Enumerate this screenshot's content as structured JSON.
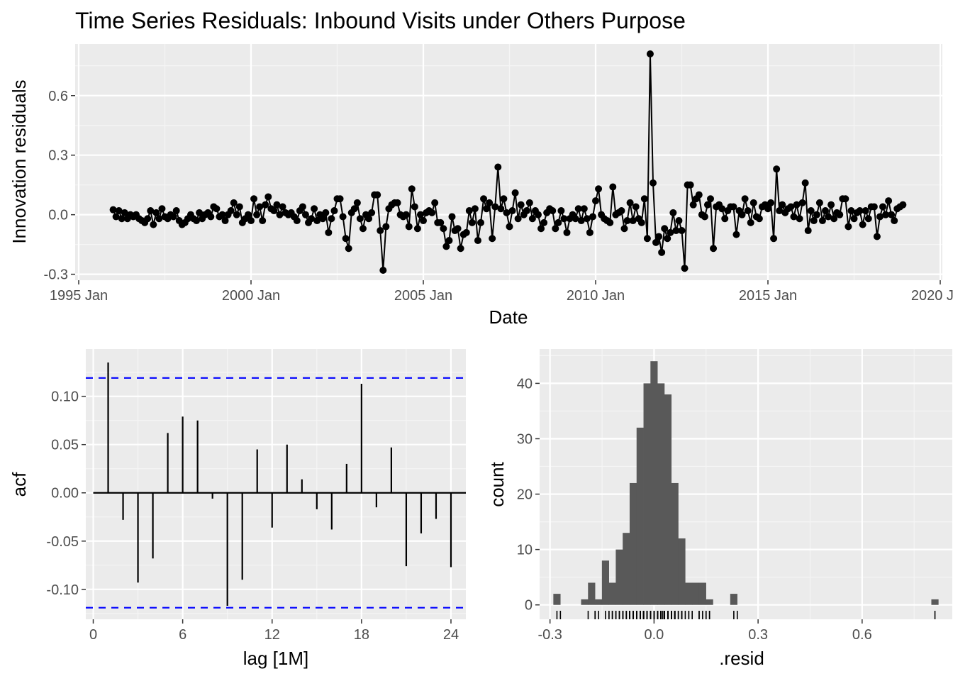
{
  "chart_data": [
    {
      "type": "line",
      "title": "Time Series Residuals: Inbound Visits under Others Purpose",
      "xlabel": "Date",
      "ylabel": "Innovation residuals",
      "x_start": "1996-01",
      "frequency": "monthly",
      "x_ticks": [
        "1995 Jan",
        "2000 Jan",
        "2005 Jan",
        "2010 Jan",
        "2015 Jan",
        "2020 Jan"
      ],
      "y_ticks": [
        "-0.3",
        "0.0",
        "0.3",
        "0.6"
      ],
      "ylim": [
        -0.33,
        0.86
      ],
      "grid": true,
      "series": [
        {
          "values": [
            0.025,
            -0.01,
            0.02,
            -0.02,
            0.01,
            -0.02,
            0.0,
            -0.01,
            0.0,
            -0.02,
            -0.03,
            -0.04,
            -0.02,
            0.02,
            -0.05,
            0.01,
            -0.02,
            0.03,
            -0.01,
            -0.02,
            0.0,
            -0.01,
            0.02,
            -0.03,
            -0.05,
            -0.04,
            -0.02,
            0.0,
            -0.02,
            -0.03,
            0.01,
            -0.02,
            0.0,
            0.01,
            -0.01,
            0.04,
            0.03,
            -0.01,
            0.0,
            -0.03,
            0.0,
            0.02,
            0.06,
            0.0,
            0.04,
            -0.04,
            -0.02,
            0.0,
            -0.03,
            0.08,
            0.0,
            0.04,
            -0.03,
            0.05,
            0.09,
            0.03,
            0.02,
            0.05,
            0.0,
            0.04,
            0.01,
            0.0,
            0.01,
            -0.01,
            -0.03,
            0.02,
            0.04,
            0.0,
            -0.04,
            -0.02,
            0.03,
            -0.03,
            0.0,
            -0.02,
            0.01,
            -0.09,
            -0.02,
            0.02,
            0.08,
            0.08,
            -0.01,
            -0.12,
            -0.17,
            0.01,
            0.03,
            0.06,
            -0.02,
            -0.07,
            0.0,
            -0.02,
            0.01,
            0.1,
            0.1,
            -0.08,
            -0.28,
            -0.06,
            0.03,
            0.05,
            0.06,
            0.06,
            0.0,
            -0.01,
            0.0,
            -0.06,
            0.13,
            0.04,
            -0.07,
            0.0,
            -0.03,
            0.01,
            0.02,
            0.01,
            0.06,
            -0.04,
            -0.04,
            -0.07,
            -0.16,
            -0.13,
            -0.01,
            -0.08,
            -0.07,
            -0.17,
            -0.1,
            -0.09,
            0.02,
            -0.04,
            0.03,
            -0.13,
            -0.04,
            0.08,
            0.03,
            0.06,
            -0.12,
            0.04,
            0.24,
            0.03,
            0.08,
            0.01,
            -0.06,
            0.02,
            0.11,
            -0.02,
            0.05,
            0.0,
            0.02,
            0.06,
            -0.02,
            0.02,
            0.0,
            -0.07,
            -0.04,
            0.01,
            0.03,
            0.02,
            -0.07,
            -0.04,
            0.02,
            -0.02,
            -0.09,
            -0.02,
            0.0,
            -0.02,
            0.03,
            -0.03,
            0.03,
            -0.02,
            -0.09,
            -0.01,
            0.07,
            0.13,
            0.0,
            -0.02,
            -0.03,
            -0.04,
            0.14,
            0.0,
            0.01,
            0.02,
            -0.07,
            -0.03,
            0.06,
            -0.03,
            0.04,
            -0.02,
            -0.04,
            0.08,
            -0.12,
            0.81,
            0.16,
            -0.14,
            -0.11,
            -0.19,
            -0.07,
            -0.12,
            -0.09,
            0.01,
            -0.08,
            -0.03,
            -0.08,
            -0.27,
            0.15,
            0.15,
            0.05,
            0.08,
            0.1,
            0.0,
            -0.01,
            0.05,
            0.08,
            -0.17,
            0.04,
            0.05,
            0.03,
            -0.02,
            0.02,
            0.04,
            0.04,
            -0.1,
            0.02,
            0.0,
            0.08,
            0.02,
            -0.04,
            0.06,
            -0.01,
            -0.02,
            0.04,
            0.05,
            0.03,
            0.06,
            -0.12,
            0.23,
            0.02,
            0.05,
            0.01,
            0.03,
            0.04,
            -0.01,
            0.05,
            -0.02,
            0.06,
            0.16,
            -0.08,
            0.02,
            -0.03,
            0.0,
            0.06,
            -0.03,
            0.02,
            -0.01,
            0.05,
            -0.02,
            0.01,
            0.0,
            0.08,
            0.08,
            -0.06,
            0.02,
            -0.02,
            0.01,
            0.02,
            -0.05,
            0.02,
            -0.02,
            0.04,
            0.04,
            -0.11,
            -0.01,
            0.04,
            0.0,
            0.07,
            0.0,
            -0.03,
            0.03,
            0.04,
            0.05
          ]
        }
      ]
    },
    {
      "type": "bar",
      "xlabel": "lag [1M]",
      "ylabel": "acf",
      "x": [
        1,
        2,
        3,
        4,
        5,
        6,
        7,
        8,
        9,
        10,
        11,
        12,
        13,
        14,
        15,
        16,
        17,
        18,
        19,
        20,
        21,
        22,
        23,
        24
      ],
      "values": [
        0.135,
        -0.028,
        -0.093,
        -0.068,
        0.062,
        0.079,
        0.075,
        -0.006,
        -0.117,
        -0.09,
        0.045,
        -0.036,
        0.05,
        0.014,
        -0.017,
        -0.038,
        0.03,
        0.113,
        -0.015,
        0.047,
        -0.076,
        -0.042,
        -0.027,
        -0.077
      ],
      "confidence_bound": 0.119,
      "x_ticks": [
        "0",
        "6",
        "12",
        "18",
        "24"
      ],
      "y_ticks": [
        "-0.10",
        "-0.05",
        "0.00",
        "0.05",
        "0.10"
      ],
      "xlim": [
        -0.5,
        25
      ],
      "ylim": [
        -0.131,
        0.149
      ],
      "colors": {
        "bound": "#0000ff",
        "bars": "#000000"
      }
    },
    {
      "type": "bar",
      "subtype": "histogram",
      "xlabel": ".resid",
      "ylabel": "count",
      "bin_width": 0.0208,
      "bins": [
        {
          "x": -0.28,
          "count": 2
        },
        {
          "x": -0.2,
          "count": 1
        },
        {
          "x": -0.18,
          "count": 4
        },
        {
          "x": -0.16,
          "count": 1
        },
        {
          "x": -0.14,
          "count": 8
        },
        {
          "x": -0.12,
          "count": 4
        },
        {
          "x": -0.1,
          "count": 10
        },
        {
          "x": -0.08,
          "count": 13
        },
        {
          "x": -0.06,
          "count": 22
        },
        {
          "x": -0.04,
          "count": 32
        },
        {
          "x": -0.02,
          "count": 40
        },
        {
          "x": 0.0,
          "count": 44
        },
        {
          "x": 0.02,
          "count": 40
        },
        {
          "x": 0.04,
          "count": 38
        },
        {
          "x": 0.06,
          "count": 22
        },
        {
          "x": 0.08,
          "count": 12
        },
        {
          "x": 0.1,
          "count": 4
        },
        {
          "x": 0.12,
          "count": 4
        },
        {
          "x": 0.14,
          "count": 4
        },
        {
          "x": 0.16,
          "count": 1
        },
        {
          "x": 0.23,
          "count": 2
        },
        {
          "x": 0.81,
          "count": 1
        }
      ],
      "x_ticks": [
        "-0.3",
        "0.0",
        "0.3",
        "0.6"
      ],
      "y_ticks": [
        "0",
        "10",
        "20",
        "30",
        "40"
      ],
      "xlim": [
        -0.33,
        0.86
      ],
      "ylim": [
        -2.6,
        46.2
      ],
      "colors": {
        "bars": "#595959",
        "rug": "#000000"
      }
    }
  ]
}
